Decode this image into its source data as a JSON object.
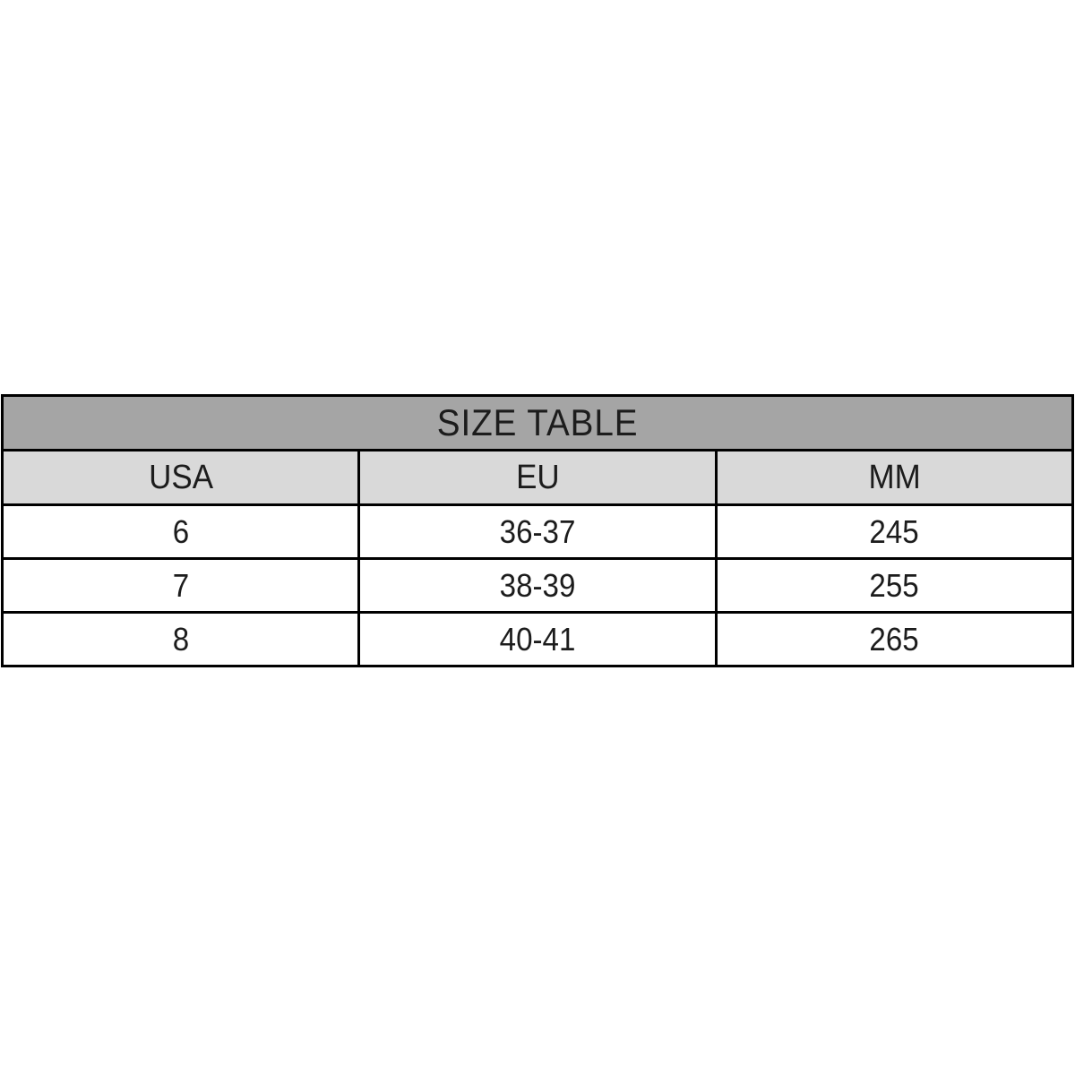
{
  "chart_data": {
    "type": "table",
    "title": "SIZE TABLE",
    "columns": [
      "USA",
      "EU",
      "MM"
    ],
    "rows": [
      [
        "6",
        "36-37",
        "245"
      ],
      [
        "7",
        "38-39",
        "255"
      ],
      [
        "8",
        "40-41",
        "265"
      ]
    ],
    "layout": {
      "column_count": 3,
      "equal_column_widths": true,
      "grid_on": true
    }
  },
  "colors": {
    "title_background": "#a5a5a5",
    "header_background": "#d9d9d9",
    "row_background": "#ffffff",
    "border": "#000000",
    "text": "#1c1c1c",
    "page_background": "#ffffff"
  }
}
